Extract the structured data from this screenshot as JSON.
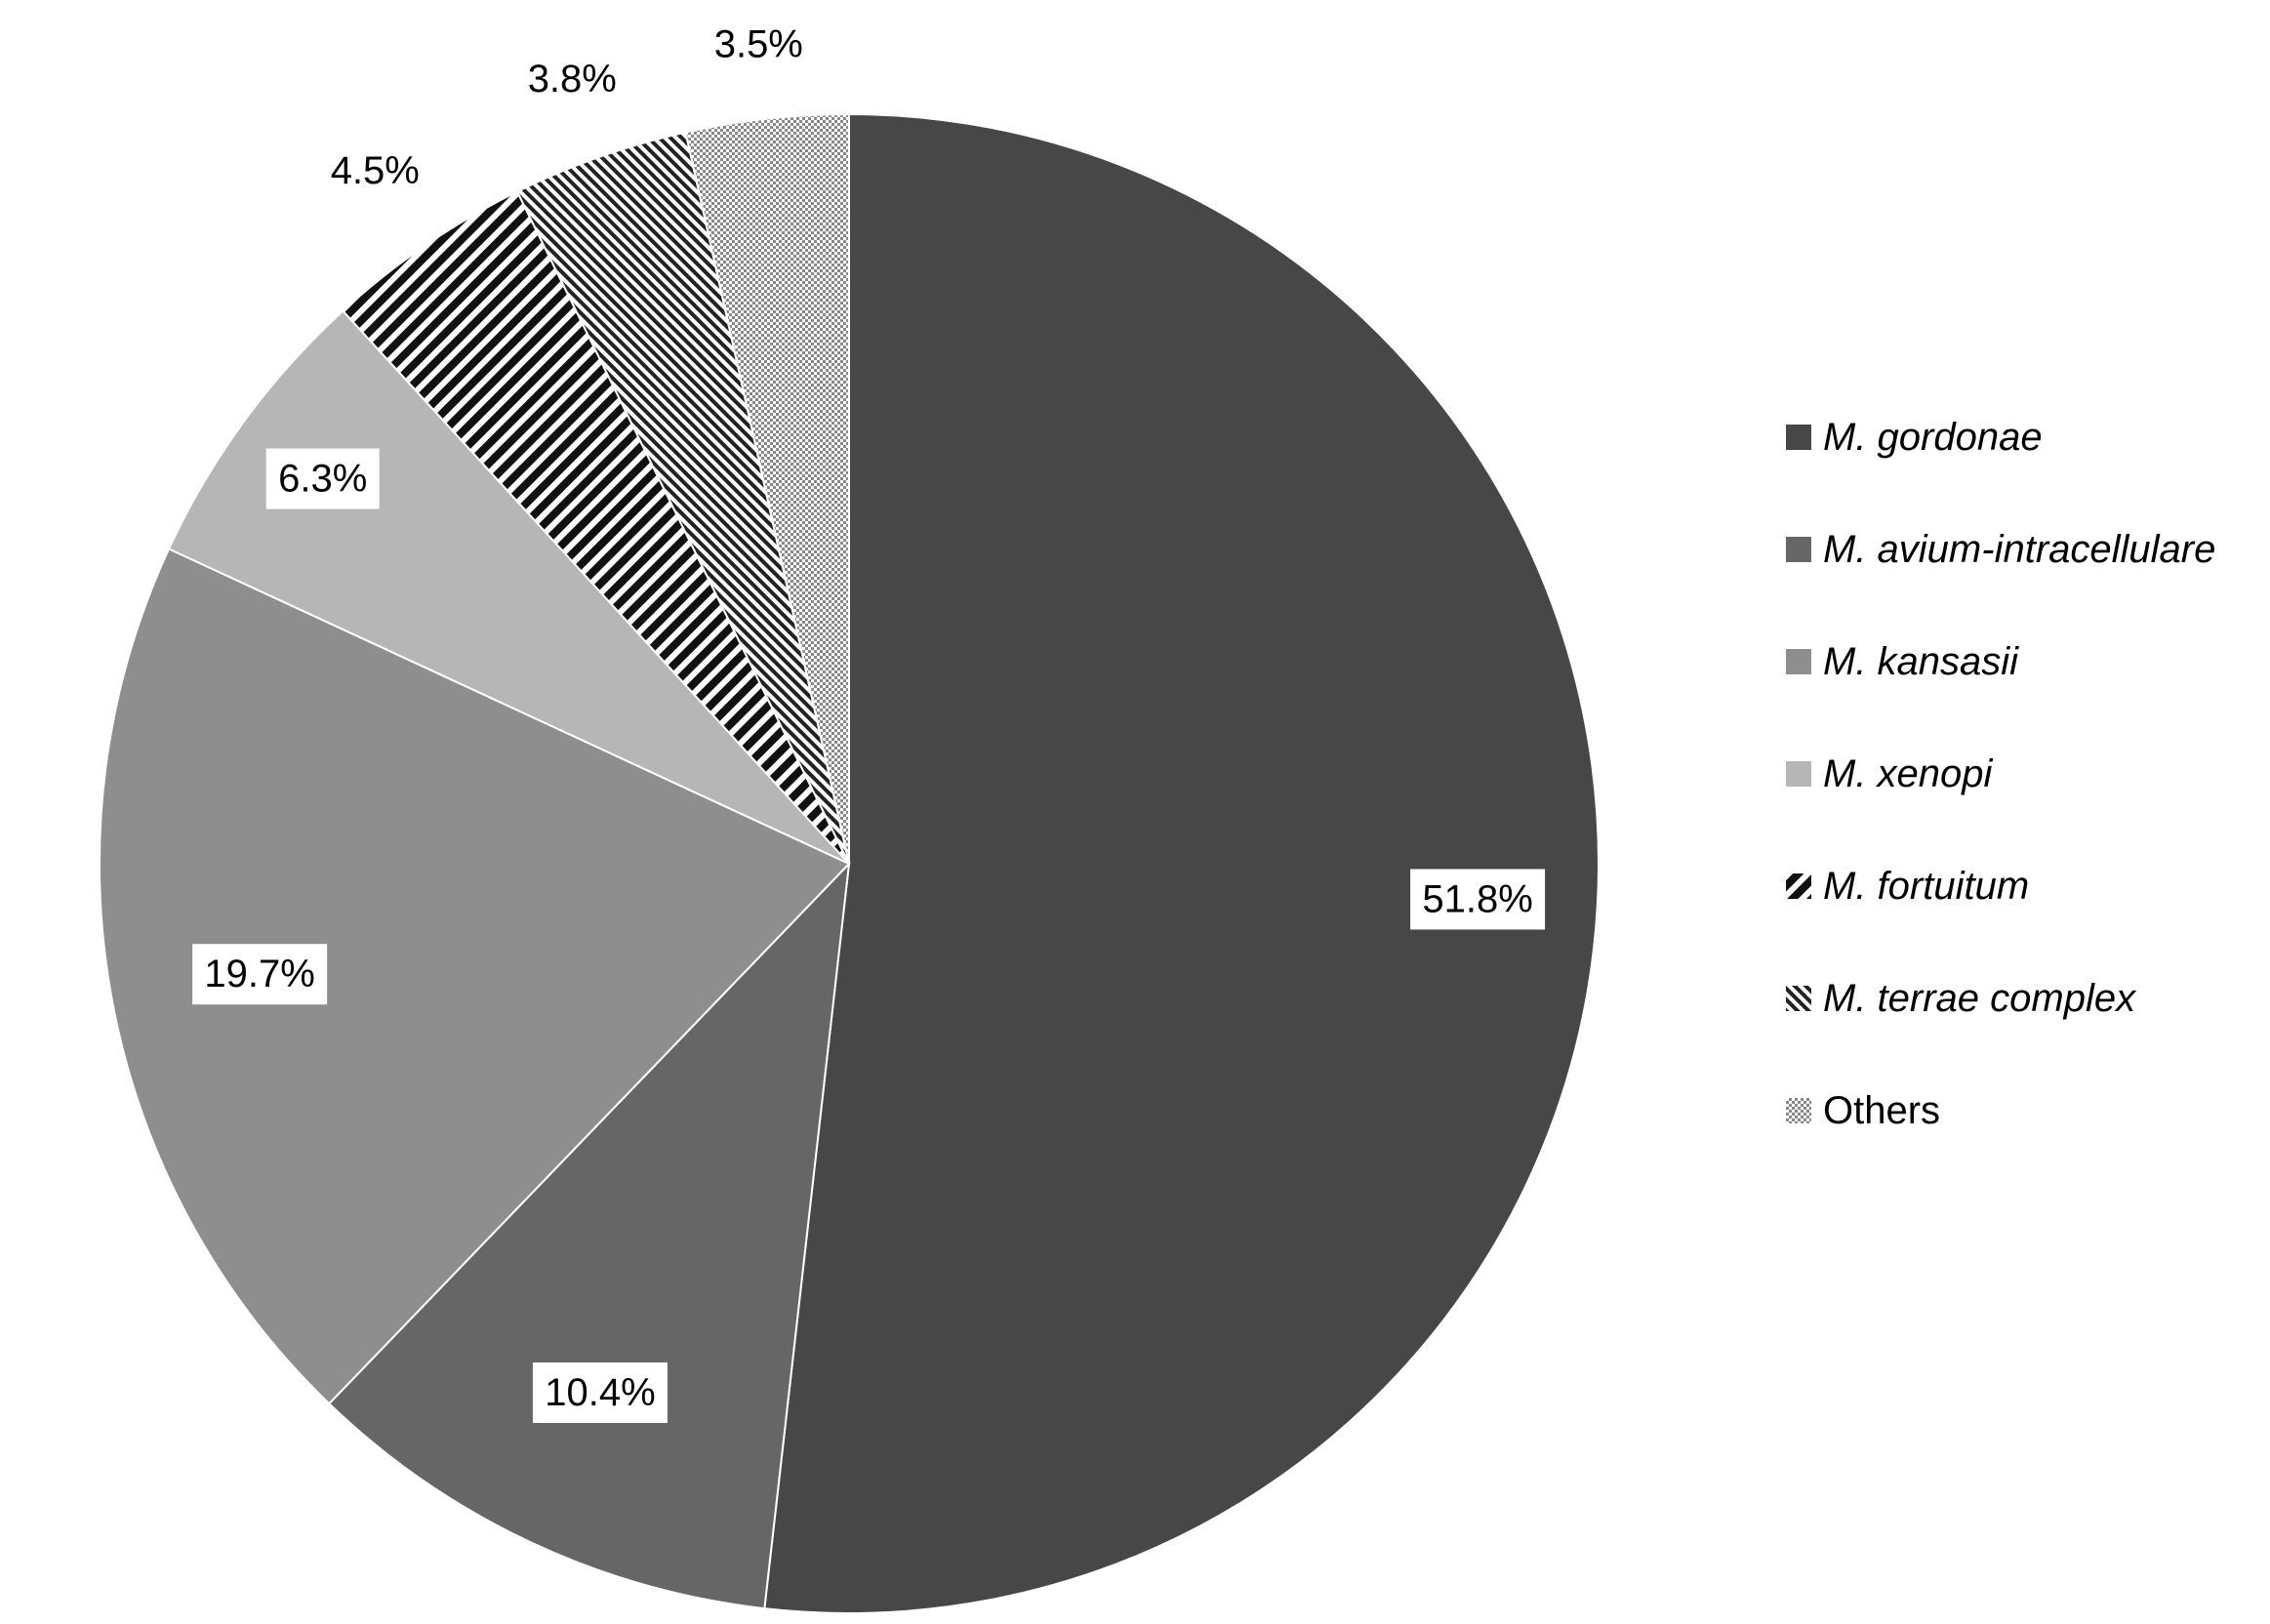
{
  "chart_data": {
    "type": "pie",
    "title": "",
    "start_angle_deg": 0,
    "direction": "clockwise",
    "legend_position": "right",
    "slices": [
      {
        "label": "M. gordonae",
        "value": 51.8,
        "display": "51.8%",
        "color": "#474747",
        "pattern": "solid",
        "italic": true,
        "label_boxed": true
      },
      {
        "label": "M. avium-intracellulare",
        "value": 10.4,
        "display": "10.4%",
        "color": "#666666",
        "pattern": "solid",
        "italic": true,
        "label_boxed": true
      },
      {
        "label": "M. kansasii",
        "value": 19.7,
        "display": "19.7%",
        "color": "#8e8e8e",
        "pattern": "solid",
        "italic": true,
        "label_boxed": true
      },
      {
        "label": "M. xenopi",
        "value": 6.3,
        "display": "6.3%",
        "color": "#b6b6b6",
        "pattern": "solid",
        "italic": true,
        "label_boxed": true
      },
      {
        "label": "M. fortuitum",
        "value": 4.5,
        "display": "4.5%",
        "color": "#111111",
        "pattern": "wide-stripes",
        "italic": true,
        "label_boxed": false
      },
      {
        "label": "M. terrae complex",
        "value": 3.8,
        "display": "3.8%",
        "color": "#222222",
        "pattern": "narrow-stripes",
        "italic": true,
        "label_boxed": false
      },
      {
        "label": "Others",
        "value": 3.5,
        "display": "3.5%",
        "color": "#aaaaaa",
        "pattern": "dots",
        "italic": false,
        "label_boxed": false
      }
    ]
  }
}
